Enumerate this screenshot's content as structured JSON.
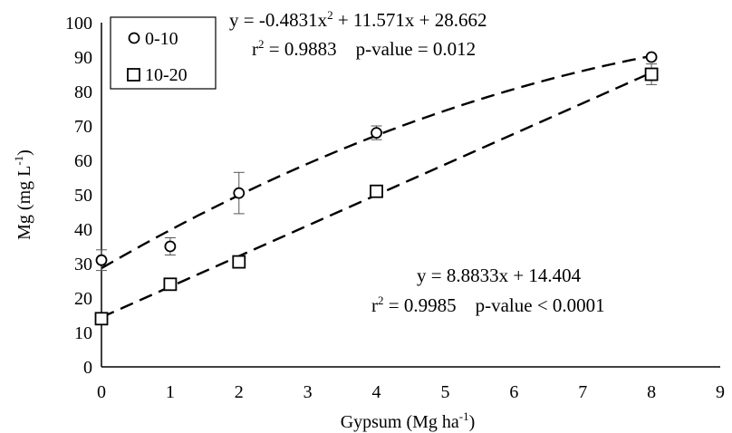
{
  "chart_data": {
    "type": "scatter",
    "xlabel": "Gypsum (Mg ha",
    "xlabel_sup": "-1",
    "xlabel_close": ")",
    "ylabel": "Mg (mg L",
    "ylabel_sup": "-1",
    "ylabel_close": ")",
    "xlim": [
      0,
      9
    ],
    "ylim": [
      0,
      100
    ],
    "x_ticks": [
      0,
      1,
      2,
      3,
      4,
      5,
      6,
      7,
      8,
      9
    ],
    "y_ticks": [
      0,
      10,
      20,
      30,
      40,
      50,
      60,
      70,
      80,
      90,
      100
    ],
    "grid": false,
    "legend_placement": "top-left",
    "series": [
      {
        "name": "0-10",
        "marker": "circle",
        "x": [
          0,
          1,
          2,
          4,
          8
        ],
        "y": [
          31,
          35,
          50.5,
          68,
          90
        ],
        "err": [
          3.0,
          2.5,
          6.0,
          2.0,
          0
        ],
        "trend": {
          "type": "quadratic",
          "a": -0.4831,
          "b": 11.571,
          "c": 28.662
        }
      },
      {
        "name": "10-20",
        "marker": "square",
        "x": [
          0,
          1,
          2,
          4,
          8
        ],
        "y": [
          14,
          24,
          30.5,
          51,
          85
        ],
        "err": [
          0,
          0,
          0,
          0,
          3.0
        ],
        "trend": {
          "type": "linear",
          "a": 0,
          "b": 8.8833,
          "c": 14.404
        }
      }
    ],
    "annotations": {
      "eq1": {
        "line1_a": "y = -0.4831x",
        "line1_sup": "2",
        "line1_b": " + 11.571x + 28.662",
        "line2_a": "r",
        "line2_sup": "2",
        "line2_b": " = 0.9883    p-value = 0.012"
      },
      "eq2": {
        "line1": "y = 8.8833x + 14.404",
        "line2_a": "r",
        "line2_sup": "2",
        "line2_b": " = 0.9985    p-value < 0.0001"
      }
    }
  }
}
